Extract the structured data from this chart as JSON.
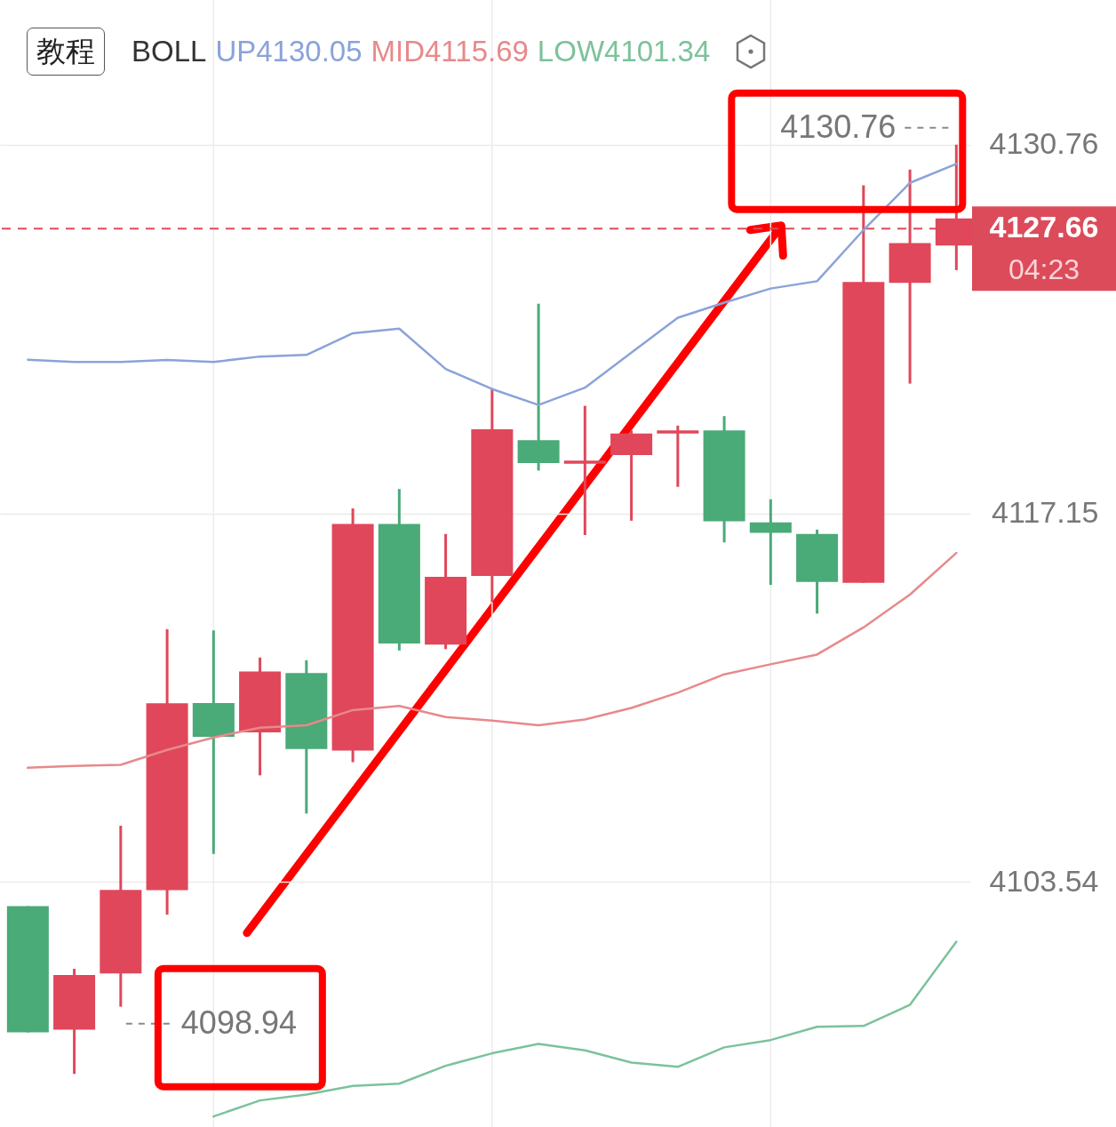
{
  "chart_data": {
    "type": "candlestick",
    "legend_title": "BOLL",
    "legend": "top",
    "tick_labels": "y",
    "grid": true,
    "categories": [
      null,
      null,
      null,
      null,
      null,
      null,
      null,
      null,
      null,
      null,
      null,
      null,
      null,
      null,
      null,
      null,
      null,
      null,
      null,
      null,
      null
    ],
    "ohlc": [
      [
        4102.65,
        4102.65,
        4097.99,
        4097.99
      ],
      [
        4098.09,
        4100.34,
        4096.46,
        4100.11
      ],
      [
        4100.17,
        4105.62,
        4098.94,
        4103.25
      ],
      [
        4103.24,
        4112.87,
        4102.34,
        4110.14
      ],
      [
        4110.15,
        4112.83,
        4104.58,
        4108.9
      ],
      [
        4109.07,
        4111.83,
        4107.48,
        4111.31
      ],
      [
        4111.26,
        4111.73,
        4106.07,
        4108.45
      ],
      [
        4108.39,
        4117.33,
        4107.97,
        4116.76
      ],
      [
        4116.76,
        4118.05,
        4112.09,
        4112.35
      ],
      [
        4112.31,
        4116.39,
        4112.14,
        4114.81
      ],
      [
        4114.84,
        4121.77,
        4113.87,
        4120.25
      ],
      [
        4119.85,
        4124.89,
        4118.73,
        4119.01
      ],
      [
        4118.98,
        4121.12,
        4116.35,
        4119.1
      ],
      [
        4119.3,
        4120.21,
        4116.88,
        4120.1
      ],
      [
        4120.1,
        4120.39,
        4118.13,
        4120.21
      ],
      [
        4120.21,
        4120.74,
        4116.08,
        4116.86
      ],
      [
        4116.82,
        4117.67,
        4114.51,
        4116.43
      ],
      [
        4116.39,
        4116.55,
        4113.45,
        4114.62
      ],
      [
        4114.59,
        4129.26,
        4114.59,
        4125.69
      ],
      [
        4125.66,
        4129.84,
        4121.94,
        4127.13
      ],
      [
        4127.04,
        4130.76,
        4126.13,
        4128.04
      ]
    ],
    "colors": [
      "#4aaa78",
      "#e0475a",
      "#e0475a",
      "#e0475a",
      "#4aaa78",
      "#e0475a",
      "#4aaa78",
      "#e0475a",
      "#4aaa78",
      "#e0475a",
      "#e0475a",
      "#4aaa78",
      "#e0475a",
      "#e0475a",
      "#e0475a",
      "#4aaa78",
      "#4aaa78",
      "#4aaa78",
      "#e0475a",
      "#e0475a",
      "#e0475a"
    ],
    "series": [
      {
        "name": "UP4130.05",
        "type": "line",
        "color": "#8aa3d9",
        "values": [
          4122.82,
          4122.74,
          4122.74,
          4122.81,
          4122.74,
          4122.94,
          4123.0,
          4123.8,
          4123.97,
          4122.48,
          4121.74,
          4121.15,
          4121.79,
          4123.08,
          4124.37,
          4124.93,
          4125.45,
          4125.72,
          4127.61,
          4129.35,
          4130.05
        ]
      },
      {
        "name": "MID4115.69",
        "type": "line",
        "color": "#e8898b",
        "values": [
          4107.76,
          4107.83,
          4107.87,
          4108.42,
          4108.88,
          4109.24,
          4109.33,
          4109.89,
          4110.04,
          4109.63,
          4109.5,
          4109.33,
          4109.54,
          4109.97,
          4110.53,
          4111.21,
          4111.58,
          4111.94,
          4112.94,
          4114.15,
          4115.69
        ]
      },
      {
        "name": "LOW4101.34",
        "type": "line",
        "color": "#7cc29b",
        "values": [
          null,
          null,
          null,
          null,
          4094.89,
          4095.48,
          4095.7,
          4096.02,
          4096.1,
          4096.76,
          4097.22,
          4097.57,
          4097.33,
          4096.88,
          4096.72,
          4097.44,
          4097.71,
          4098.2,
          4098.23,
          4099.01,
          4101.34
        ]
      }
    ],
    "ylim": [
      4094.5,
      4136.1
    ],
    "yticks": [
      4103.54,
      4117.15,
      4130.76
    ],
    "ref_lines": [
      {
        "axis": "y",
        "value": 4127.66,
        "label": "4127.66",
        "color": "#dc4b5a",
        "line_style": "dashed"
      }
    ],
    "annotations": [
      "教程",
      "4130.76",
      "04:23",
      "4098.94"
    ]
  }
}
